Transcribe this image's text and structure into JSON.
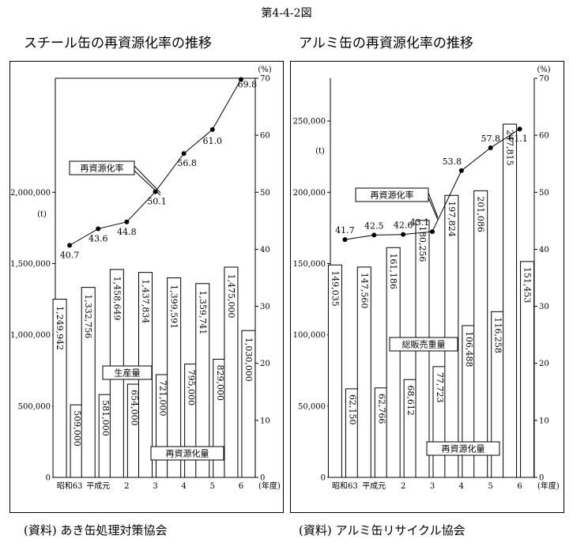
{
  "figure_title": "第4-4-2図",
  "panels": [
    {
      "title": "スチール缶の再資源化率の推移",
      "source": "(資料) あき缶処理対策協会",
      "left_unit": "(t)",
      "right_unit": "(%)",
      "x_unit": "(年度)",
      "total_label": "生産量",
      "recycled_label": "再資源化量",
      "rate_label": "再資源化率"
    },
    {
      "title": "アルミ缶の再資源化率の推移",
      "source": "(資料) アルミ缶リサイクル協会",
      "left_unit": "(t)",
      "right_unit": "(%)",
      "x_unit": "(年度)",
      "total_label": "総販売重量",
      "recycled_label": "再資源化量",
      "rate_label": "再資源化率"
    }
  ],
  "chart_data": [
    {
      "type": "bar",
      "title": "スチール缶の再資源化率の推移",
      "categories": [
        "昭和63",
        "平成元",
        "2",
        "3",
        "4",
        "5",
        "6"
      ],
      "series": [
        {
          "name": "生産量",
          "values": [
            1249942,
            1332756,
            1458649,
            1437834,
            1399591,
            1359741,
            1475000
          ],
          "labels": [
            "1,249,942",
            "1,332,756",
            "1,458,649",
            "1,437,834",
            "1,399,591",
            "1,359,741",
            "1,475,000"
          ]
        },
        {
          "name": "再資源化量",
          "values": [
            509000,
            581000,
            654000,
            721000,
            795000,
            829000,
            1030000
          ],
          "labels": [
            "509,000",
            "581,000",
            "654,000",
            "721,000",
            "795,000",
            "829,000",
            "1,030,000"
          ]
        },
        {
          "name": "再資源化率",
          "type": "line",
          "axis": "right",
          "values": [
            40.7,
            43.6,
            44.8,
            50.1,
            56.8,
            61.0,
            69.8
          ],
          "labels": [
            "40.7",
            "43.6",
            "44.8",
            "50.1",
            "56.8",
            "61.0",
            "69.8"
          ]
        }
      ],
      "ylabel": "(t)",
      "y2label": "(%)",
      "xlabel": "(年度)",
      "ylim": [
        0,
        2800000
      ],
      "y2lim": [
        0,
        70
      ],
      "yticks": [
        "0",
        "500,000",
        "1,000,000",
        "1,500,000",
        "2,000,000"
      ],
      "y2ticks": [
        "0",
        "10",
        "20",
        "30",
        "40",
        "50",
        "60",
        "70"
      ],
      "grid": false
    },
    {
      "type": "bar",
      "title": "アルミ缶の再資源化率の推移",
      "categories": [
        "昭和63",
        "平成元",
        "2",
        "3",
        "4",
        "5",
        "6"
      ],
      "series": [
        {
          "name": "総販売重量",
          "values": [
            149035,
            147560,
            161186,
            180256,
            197824,
            201086,
            247815
          ],
          "labels": [
            "149,035",
            "147,560",
            "161,186",
            "180,256",
            "197,824",
            "201,086",
            "247,815"
          ]
        },
        {
          "name": "再資源化量",
          "values": [
            62150,
            62766,
            68612,
            77723,
            106488,
            116258,
            151453
          ],
          "labels": [
            "62,150",
            "62,766",
            "68,612",
            "77,723",
            "106,488",
            "116,258",
            "151,453"
          ]
        },
        {
          "name": "再資源化率",
          "type": "line",
          "axis": "right",
          "values": [
            41.7,
            42.5,
            42.6,
            43.1,
            53.8,
            57.8,
            61.1
          ],
          "labels": [
            "41.7",
            "42.5",
            "42.6",
            "43.1",
            "53.8",
            "57.8",
            "61.1"
          ]
        }
      ],
      "ylabel": "(t)",
      "y2label": "(%)",
      "xlabel": "(年度)",
      "ylim": [
        0,
        280000
      ],
      "y2lim": [
        0,
        70
      ],
      "yticks": [
        "0",
        "50,000",
        "100,000",
        "150,000",
        "200,000",
        "250,000"
      ],
      "y2ticks": [
        "0",
        "10",
        "20",
        "30",
        "40",
        "50",
        "60",
        "70"
      ],
      "grid": false
    }
  ]
}
